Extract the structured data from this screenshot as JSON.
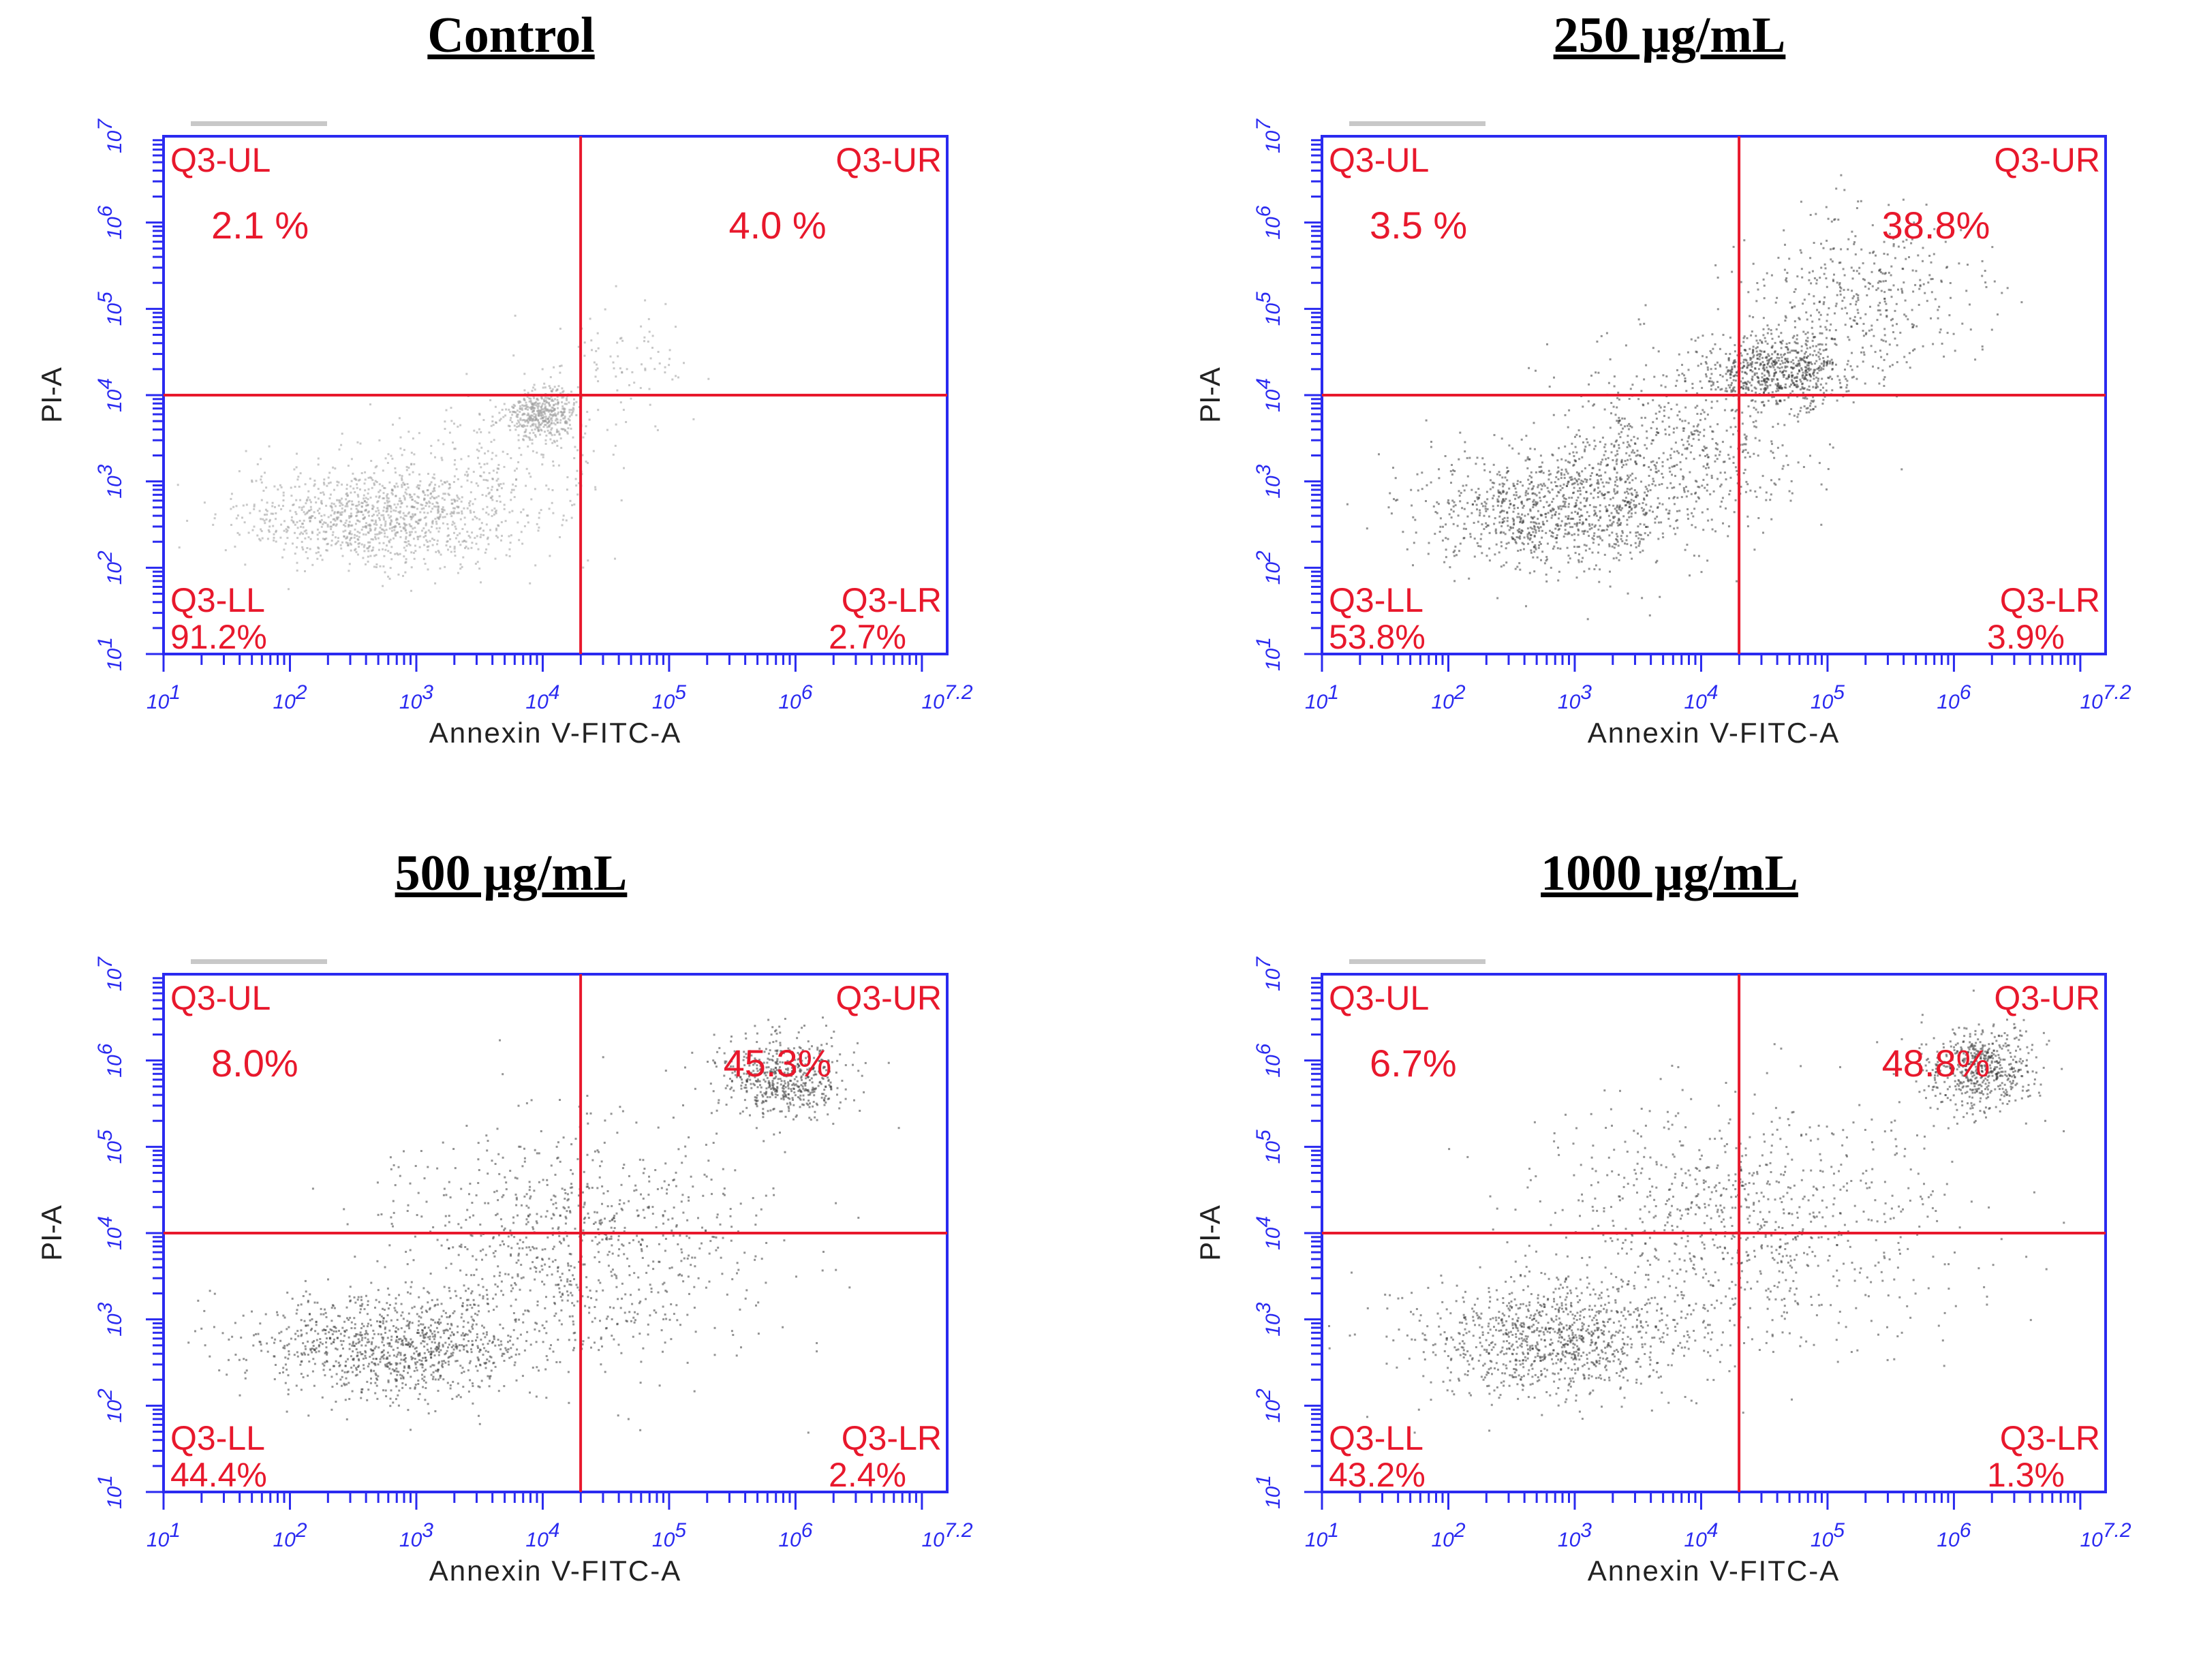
{
  "figure": {
    "quadrant_labels": {
      "UL": "Q3-UL",
      "UR": "Q3-UR",
      "LL": "Q3-LL",
      "LR": "Q3-LR"
    },
    "x_axis_label": "Annexin V-FITC-A",
    "y_axis_label": "PI-A",
    "colors": {
      "axis": "#2a2af0",
      "gate": "#e8182c",
      "dots": "#222222",
      "title": "#000000"
    }
  },
  "chart_data": [
    {
      "type": "scatter",
      "title": "Control",
      "xlabel": "Annexin V-FITC-A",
      "ylabel": "PI-A",
      "xlim": [
        1,
        7.2
      ],
      "ylim": [
        1,
        7
      ],
      "x_ticks": [
        "10^1",
        "10^2",
        "10^3",
        "10^4",
        "10^5",
        "10^6",
        "10^7.2"
      ],
      "y_ticks": [
        "10^1",
        "10^2",
        "10^3",
        "10^4",
        "10^5",
        "10^6",
        "10^7"
      ],
      "gate": {
        "x": 4.3,
        "y": 4.0
      },
      "quadrants": {
        "UL": "2.1 %",
        "UR": "4.0 %",
        "LL": "91.2%",
        "LR": "2.7%"
      },
      "dot_shade": "#9a9a9a",
      "population": [
        {
          "x": 2.7,
          "y": 2.6,
          "sx": 0.55,
          "sy": 0.28,
          "n": 1100
        },
        {
          "x": 4.0,
          "y": 3.8,
          "sx": 0.14,
          "sy": 0.14,
          "n": 450
        },
        {
          "x": 3.6,
          "y": 3.2,
          "sx": 0.5,
          "sy": 0.45,
          "n": 250
        },
        {
          "x": 4.6,
          "y": 4.4,
          "sx": 0.35,
          "sy": 0.3,
          "n": 80
        }
      ]
    },
    {
      "type": "scatter",
      "title": "250 µg/mL",
      "xlabel": "Annexin V-FITC-A",
      "ylabel": "PI-A",
      "xlim": [
        1,
        7.2
      ],
      "ylim": [
        1,
        7
      ],
      "x_ticks": [
        "10^1",
        "10^2",
        "10^3",
        "10^4",
        "10^5",
        "10^6",
        "10^7.2"
      ],
      "y_ticks": [
        "10^1",
        "10^2",
        "10^3",
        "10^4",
        "10^5",
        "10^6",
        "10^7"
      ],
      "gate": {
        "x": 4.3,
        "y": 4.0
      },
      "quadrants": {
        "UL": "3.5 %",
        "UR": "38.8%",
        "LL": "53.8%",
        "LR": "3.9%"
      },
      "dot_shade": "#3a3a3a",
      "population": [
        {
          "x": 2.9,
          "y": 2.7,
          "sx": 0.55,
          "sy": 0.35,
          "n": 1100
        },
        {
          "x": 4.6,
          "y": 4.3,
          "sx": 0.3,
          "sy": 0.22,
          "n": 700
        },
        {
          "x": 5.3,
          "y": 5.2,
          "sx": 0.45,
          "sy": 0.45,
          "n": 400
        },
        {
          "x": 3.8,
          "y": 3.5,
          "sx": 0.5,
          "sy": 0.5,
          "n": 500
        }
      ]
    },
    {
      "type": "scatter",
      "title": "500 µg/mL",
      "xlabel": "Annexin V-FITC-A",
      "ylabel": "PI-A",
      "xlim": [
        1,
        7.2
      ],
      "ylim": [
        1,
        7
      ],
      "x_ticks": [
        "10^1",
        "10^2",
        "10^3",
        "10^4",
        "10^5",
        "10^6",
        "10^7.2"
      ],
      "y_ticks": [
        "10^1",
        "10^2",
        "10^3",
        "10^4",
        "10^5",
        "10^6",
        "10^7"
      ],
      "gate": {
        "x": 4.3,
        "y": 4.0
      },
      "quadrants": {
        "UL": "8.0%",
        "UR": "45.3%",
        "LL": "44.4%",
        "LR": "2.4%"
      },
      "dot_shade": "#3a3a3a",
      "population": [
        {
          "x": 2.8,
          "y": 2.7,
          "sx": 0.55,
          "sy": 0.3,
          "n": 1000
        },
        {
          "x": 5.9,
          "y": 5.8,
          "sx": 0.25,
          "sy": 0.25,
          "n": 550
        },
        {
          "x": 4.2,
          "y": 3.9,
          "sx": 0.75,
          "sy": 0.7,
          "n": 900
        }
      ]
    },
    {
      "type": "scatter",
      "title": "1000 µg/mL",
      "xlabel": "Annexin V-FITC-A",
      "ylabel": "PI-A",
      "xlim": [
        1,
        7.2
      ],
      "ylim": [
        1,
        7
      ],
      "x_ticks": [
        "10^1",
        "10^2",
        "10^3",
        "10^4",
        "10^5",
        "10^6",
        "10^7.2"
      ],
      "y_ticks": [
        "10^1",
        "10^2",
        "10^3",
        "10^4",
        "10^5",
        "10^6",
        "10^7"
      ],
      "gate": {
        "x": 4.3,
        "y": 4.0
      },
      "quadrants": {
        "UL": "6.7%",
        "UR": "48.8%",
        "LL": "43.2%",
        "LR": "1.3%"
      },
      "dot_shade": "#3a3a3a",
      "population": [
        {
          "x": 2.8,
          "y": 2.8,
          "sx": 0.55,
          "sy": 0.35,
          "n": 1000
        },
        {
          "x": 6.2,
          "y": 5.9,
          "sx": 0.22,
          "sy": 0.25,
          "n": 550
        },
        {
          "x": 4.4,
          "y": 4.1,
          "sx": 0.8,
          "sy": 0.75,
          "n": 900
        }
      ]
    }
  ]
}
